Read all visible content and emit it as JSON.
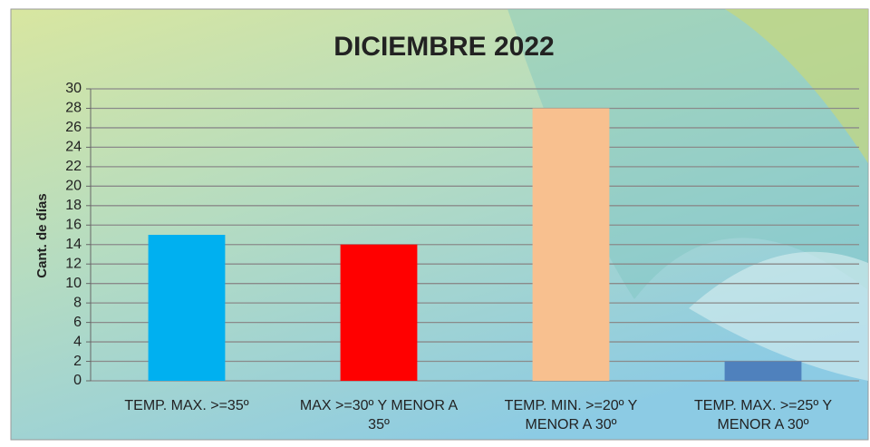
{
  "chart_data": {
    "type": "bar",
    "title": "DICIEMBRE 2022",
    "y_label": "Cant. de días",
    "categories": [
      "TEMP. MAX. >=35º",
      "MAX >=30º Y MENOR A 35º",
      "TEMP. MIN. >=20º Y MENOR A 30º",
      "TEMP. MAX. >=25º Y MENOR A 30º"
    ],
    "values": [
      15,
      14,
      28,
      2
    ],
    "colors": [
      "#00b0f0",
      "#ff0000",
      "#f8c08f",
      "#4f81bd"
    ],
    "ylim": [
      0,
      30
    ],
    "yticks": [
      0,
      2,
      4,
      6,
      8,
      10,
      12,
      14,
      16,
      18,
      20,
      22,
      24,
      26,
      28,
      30
    ],
    "grid": true
  }
}
